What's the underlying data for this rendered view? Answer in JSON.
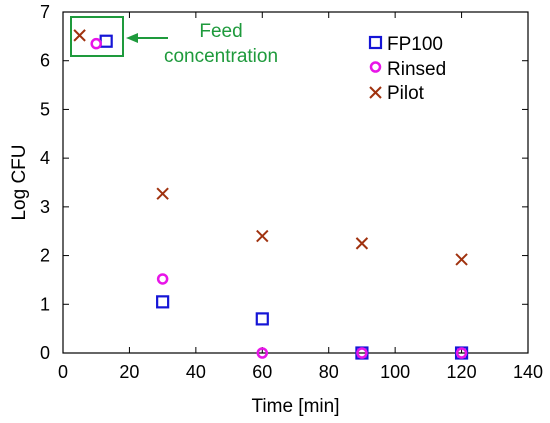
{
  "chart_data": {
    "type": "scatter",
    "title": "",
    "xlabel": "Time [min]",
    "ylabel": "Log CFU",
    "xlim": [
      0,
      140
    ],
    "ylim": [
      0,
      7
    ],
    "xticks": [
      0,
      20,
      40,
      60,
      80,
      100,
      120,
      140
    ],
    "yticks": [
      0,
      1,
      2,
      3,
      4,
      5,
      6,
      7
    ],
    "grid": false,
    "legend_position": "top-right",
    "series": [
      {
        "name": "FP100",
        "marker": "square",
        "color": "#1515d6",
        "points": [
          {
            "x": 13,
            "y": 6.4
          },
          {
            "x": 30,
            "y": 1.05
          },
          {
            "x": 60,
            "y": 0.7
          },
          {
            "x": 90,
            "y": 0
          },
          {
            "x": 120,
            "y": 0
          }
        ]
      },
      {
        "name": "Rinsed",
        "marker": "circle",
        "color": "#e815e8",
        "points": [
          {
            "x": 10,
            "y": 6.35
          },
          {
            "x": 30,
            "y": 1.52
          },
          {
            "x": 60,
            "y": 0
          },
          {
            "x": 90,
            "y": 0
          },
          {
            "x": 120,
            "y": 0
          }
        ]
      },
      {
        "name": "Pilot",
        "marker": "x",
        "color": "#a0320f",
        "points": [
          {
            "x": 5,
            "y": 6.52
          },
          {
            "x": 30,
            "y": 3.27
          },
          {
            "x": 60,
            "y": 2.4
          },
          {
            "x": 90,
            "y": 2.25
          },
          {
            "x": 120,
            "y": 1.92
          }
        ]
      }
    ],
    "annotation": {
      "text_line1": "Feed",
      "text_line2": "concentration",
      "color": "#1e9a3c"
    }
  }
}
